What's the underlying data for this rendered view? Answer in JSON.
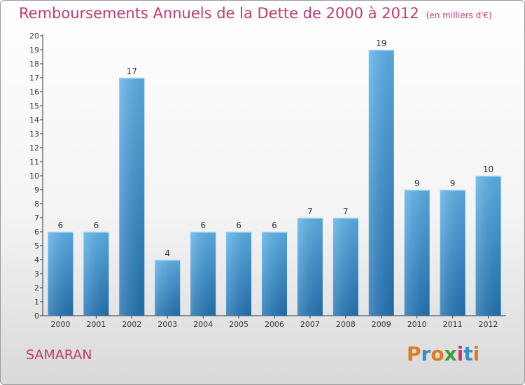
{
  "header": {
    "title": "Remboursements Annuels de la Dette de 2000 à 2012",
    "subtitle": "(en milliers d'€)"
  },
  "footer": {
    "commune": "SAMARAN",
    "logo": "Proxiti"
  },
  "colors": {
    "title": "#c4386f",
    "bar_top": "#5eb2ea",
    "bar_bottom": "#2274b4",
    "axis": "#333333",
    "grid_tick": "#333333",
    "logo_letters": [
      "#e07b1f",
      "#2f8fd0",
      "#e07b1f",
      "#3aa13a",
      "#c4386f",
      "#2f8fd0",
      "#e07b1f"
    ]
  },
  "chart_data": {
    "type": "bar",
    "title": "Remboursements Annuels de la Dette de 2000 à 2012",
    "subtitle": "(en milliers d'€)",
    "categories": [
      "2000",
      "2001",
      "2002",
      "2003",
      "2004",
      "2005",
      "2006",
      "2007",
      "2008",
      "2009",
      "2010",
      "2011",
      "2012"
    ],
    "values": [
      6,
      6,
      17,
      4,
      6,
      6,
      6,
      7,
      7,
      19,
      9,
      9,
      10
    ],
    "data_labels": [
      "6",
      "6",
      "17",
      "4",
      "6",
      "6",
      "6",
      "7",
      "7",
      "19",
      "9",
      "9",
      "10"
    ],
    "ylim": [
      0,
      20
    ],
    "yticks": [
      "0",
      "1",
      "2",
      "3",
      "4",
      "5",
      "6",
      "7",
      "8",
      "9",
      "10",
      "11",
      "12",
      "13",
      "14",
      "15",
      "16",
      "17",
      "18",
      "19",
      "20"
    ],
    "xlabel": "",
    "ylabel": "",
    "grid": false,
    "legend": "none"
  }
}
